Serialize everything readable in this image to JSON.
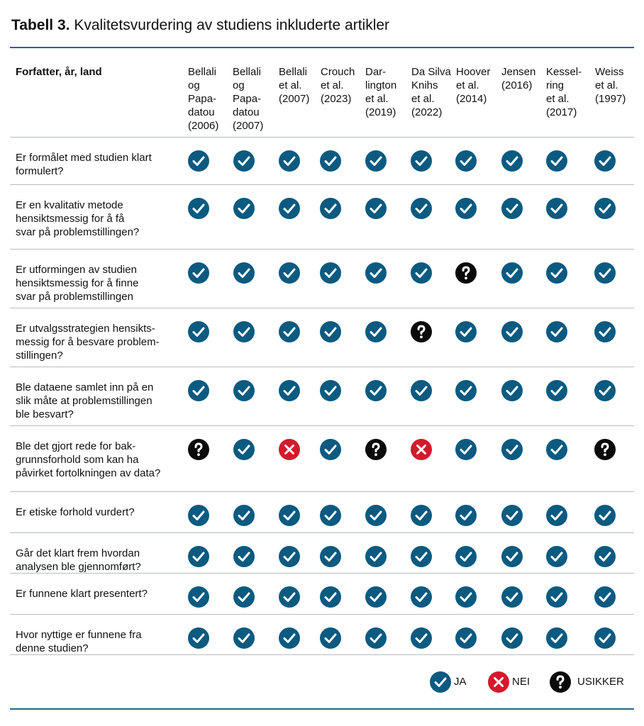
{
  "title": {
    "label": "Tabell 3.",
    "text": "Kvalitetsvurdering av studiens inkluderte artikler"
  },
  "table": {
    "header": [
      "Forfatter, år, land",
      "Bellali\nog\nPapa-\ndatou\n(2006)",
      "Bellali\nog\nPapa-\ndatou\n(2007)",
      "Bellali\net al.\n(2007)",
      "Crouch\net al.\n(2023)",
      "Dar-\nlington\net al.\n(2019)",
      "Da Silva\nKnihs\net al.\n(2022)",
      "Hoover\net al.\n(2014)",
      "Jensen\n(2016)",
      "Kessel-\nring\net al.\n(2017)",
      "Weiss\net al.\n(1997)"
    ],
    "rows": [
      {
        "question": "Er formålet med studien klart\nformulert?",
        "cells": [
          "JA",
          "JA",
          "JA",
          "JA",
          "JA",
          "JA",
          "JA",
          "JA",
          "JA",
          "JA"
        ]
      },
      {
        "question": "Er en kvalitativ metode\nhensiktsmessig for å få\nsvar på problemstillingen?",
        "cells": [
          "JA",
          "JA",
          "JA",
          "JA",
          "JA",
          "JA",
          "JA",
          "JA",
          "JA",
          "JA"
        ]
      },
      {
        "question": "Er utformingen av studien\nhensiktsmessig for å finne\nsvar på problemstillingen",
        "cells": [
          "JA",
          "JA",
          "JA",
          "JA",
          "JA",
          "JA",
          "USIKKER",
          "JA",
          "JA",
          "JA"
        ]
      },
      {
        "question": "Er utvalgsstrategien hensikts-\nmessig for å besvare problem-\nstillingen?",
        "cells": [
          "JA",
          "JA",
          "JA",
          "JA",
          "JA",
          "USIKKER",
          "JA",
          "JA",
          "JA",
          "JA"
        ]
      },
      {
        "question": "Ble dataene samlet inn på en\nslik måte at problemstillingen\nble besvart?",
        "cells": [
          "JA",
          "JA",
          "JA",
          "JA",
          "JA",
          "JA",
          "JA",
          "JA",
          "JA",
          "JA"
        ]
      },
      {
        "question": "Ble det gjort rede for bak-\ngrunnsforhold som kan ha\npåvirket fortolkningen av data?",
        "cells": [
          "USIKKER",
          "JA",
          "NEI",
          "JA",
          "USIKKER",
          "NEI",
          "JA",
          "JA",
          "JA",
          "USIKKER"
        ]
      },
      {
        "question": "Er etiske forhold vurdert?",
        "cells": [
          "JA",
          "JA",
          "JA",
          "JA",
          "JA",
          "JA",
          "JA",
          "JA",
          "JA",
          "JA"
        ]
      },
      {
        "question": "Går det klart frem hvordan\nanalysen ble gjennomført?",
        "cells": [
          "JA",
          "JA",
          "JA",
          "JA",
          "JA",
          "JA",
          "JA",
          "JA",
          "JA",
          "JA"
        ]
      },
      {
        "question": "Er funnene klart presentert?",
        "cells": [
          "JA",
          "JA",
          "JA",
          "JA",
          "JA",
          "JA",
          "JA",
          "JA",
          "JA",
          "JA"
        ]
      },
      {
        "question": "Hvor nyttige er funnene fra\ndenne studien?",
        "cells": [
          "JA",
          "JA",
          "JA",
          "JA",
          "JA",
          "JA",
          "JA",
          "JA",
          "JA",
          "JA"
        ]
      }
    ]
  },
  "legend": [
    "JA",
    "NEI",
    "USIKKER"
  ]
}
